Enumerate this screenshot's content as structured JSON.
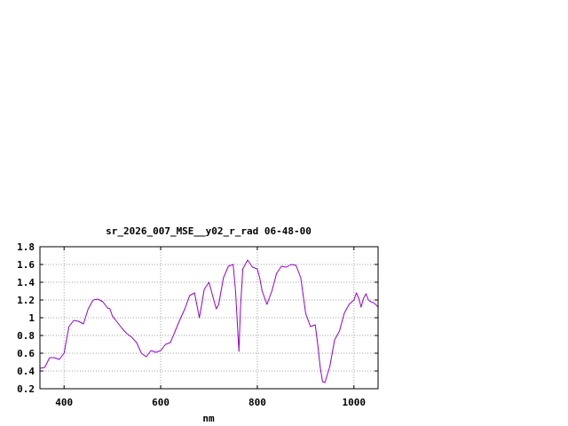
{
  "chart_data": {
    "type": "line",
    "title": "sr_2026_007_MSE__y02_r_rad 06-48-00",
    "xlabel": "nm",
    "ylabel": "",
    "xlim": [
      350,
      1050
    ],
    "ylim": [
      0.2,
      1.8
    ],
    "xticks": [
      400,
      600,
      800,
      1000
    ],
    "xtick_labels": [
      "400",
      "600",
      "800",
      "1000"
    ],
    "yticks": [
      0.2,
      0.4,
      0.6,
      0.8,
      1.0,
      1.2,
      1.4,
      1.6,
      1.8
    ],
    "ytick_labels": [
      "0.2",
      "0.4",
      "0.6",
      "0.8",
      "1",
      "1.2",
      "1.4",
      "1.6",
      "1.8"
    ],
    "grid": true,
    "series": [
      {
        "color": "#9400d3",
        "x": [
          350,
          360,
          370,
          380,
          390,
          400,
          405,
          410,
          420,
          430,
          440,
          450,
          460,
          470,
          480,
          490,
          495,
          500,
          510,
          520,
          530,
          540,
          550,
          560,
          570,
          580,
          590,
          600,
          610,
          620,
          630,
          640,
          650,
          660,
          670,
          680,
          685,
          690,
          700,
          710,
          715,
          720,
          730,
          740,
          750,
          755,
          760,
          762,
          765,
          770,
          780,
          790,
          800,
          805,
          810,
          820,
          830,
          840,
          850,
          860,
          870,
          880,
          890,
          900,
          910,
          920,
          925,
          930,
          935,
          940,
          950,
          960,
          970,
          980,
          990,
          1000,
          1005,
          1010,
          1015,
          1020,
          1025,
          1030,
          1035,
          1040,
          1045,
          1050
        ],
        "y": [
          0.43,
          0.44,
          0.55,
          0.55,
          0.53,
          0.6,
          0.75,
          0.9,
          0.97,
          0.96,
          0.93,
          1.1,
          1.2,
          1.21,
          1.18,
          1.11,
          1.1,
          1.02,
          0.95,
          0.88,
          0.82,
          0.78,
          0.72,
          0.6,
          0.56,
          0.63,
          0.61,
          0.63,
          0.7,
          0.72,
          0.85,
          0.98,
          1.1,
          1.25,
          1.28,
          1.0,
          1.15,
          1.32,
          1.4,
          1.2,
          1.1,
          1.15,
          1.45,
          1.58,
          1.6,
          1.3,
          0.8,
          0.62,
          1.1,
          1.55,
          1.65,
          1.57,
          1.55,
          1.45,
          1.3,
          1.15,
          1.3,
          1.5,
          1.58,
          1.57,
          1.6,
          1.59,
          1.45,
          1.05,
          0.9,
          0.92,
          0.7,
          0.45,
          0.28,
          0.27,
          0.45,
          0.75,
          0.85,
          1.05,
          1.15,
          1.2,
          1.28,
          1.22,
          1.12,
          1.22,
          1.27,
          1.2,
          1.18,
          1.17,
          1.15,
          1.12
        ]
      }
    ]
  }
}
